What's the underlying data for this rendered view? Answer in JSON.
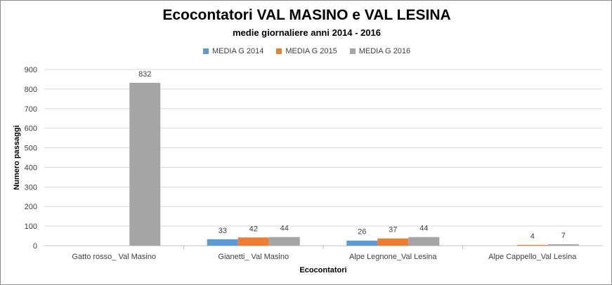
{
  "chart_data": {
    "type": "bar",
    "title": "Ecocontatori VAL MASINO e VAL LESINA",
    "subtitle": "medie giornaliere anni 2014 - 2016",
    "xlabel": "Ecocontatori",
    "ylabel": "Numero passaggi",
    "ylim": [
      0,
      900
    ],
    "yticks": [
      "0",
      "100",
      "200",
      "300",
      "400",
      "500",
      "600",
      "700",
      "800",
      "900"
    ],
    "categories": [
      "Gatto rosso_ Val Masino",
      "Gianetti_ Val Masino",
      "Alpe Legnone_Val Lesina",
      "Alpe Cappello_Val Lesina"
    ],
    "series": [
      {
        "name": "MEDIA G 2014",
        "color": "#5b9bd5",
        "values": [
          null,
          33,
          26,
          null
        ],
        "labels": [
          "",
          "33",
          "26",
          ""
        ]
      },
      {
        "name": "MEDIA G 2015",
        "color": "#ed7d31",
        "values": [
          null,
          42,
          37,
          4
        ],
        "labels": [
          "",
          "42",
          "37",
          "4"
        ]
      },
      {
        "name": "MEDIA G 2016",
        "color": "#a5a5a5",
        "values": [
          832,
          44,
          44,
          7
        ],
        "labels": [
          "832",
          "44",
          "44",
          "7"
        ]
      }
    ],
    "grid": true,
    "legend": "top"
  }
}
